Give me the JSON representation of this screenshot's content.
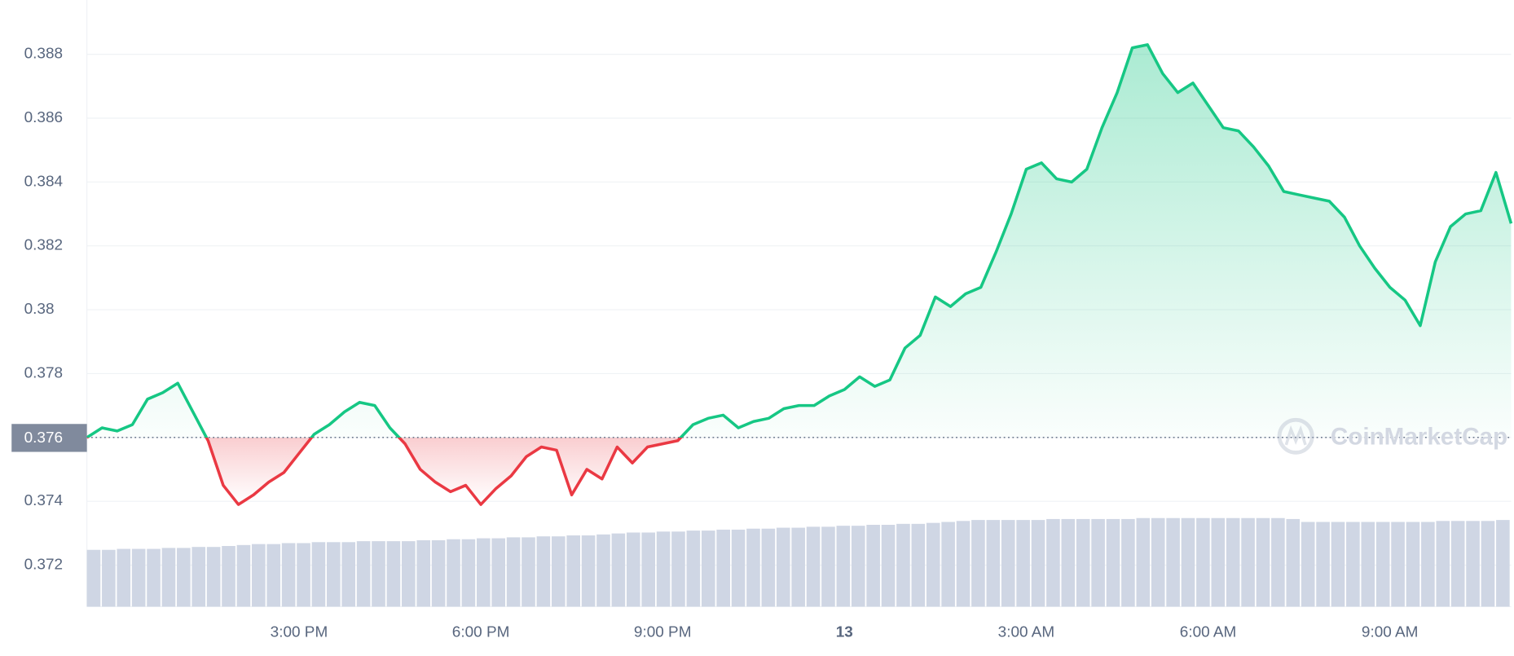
{
  "chart_data": {
    "type": "line",
    "x": [
      0,
      0.25,
      0.5,
      0.75,
      1,
      1.25,
      1.5,
      1.75,
      2,
      2.25,
      2.5,
      2.75,
      3,
      3.25,
      3.5,
      3.75,
      4,
      4.25,
      4.5,
      4.75,
      5,
      5.25,
      5.5,
      5.75,
      6,
      6.25,
      6.5,
      6.75,
      7,
      7.25,
      7.5,
      7.75,
      8,
      8.25,
      8.5,
      8.75,
      9,
      9.25,
      9.5,
      9.75,
      10,
      10.25,
      10.5,
      10.75,
      11,
      11.25,
      11.5,
      11.75,
      12,
      12.25,
      12.5,
      12.75,
      13,
      13.25,
      13.5,
      13.75,
      14,
      14.25,
      14.5,
      14.75,
      15,
      15.25,
      15.5,
      15.75,
      16,
      16.25,
      16.5,
      16.75,
      17,
      17.25,
      17.5,
      17.75,
      18,
      18.25,
      18.5,
      18.75,
      19,
      19.25,
      19.5,
      19.75,
      20,
      20.25,
      20.5,
      20.75,
      21,
      21.25,
      21.5,
      21.75,
      22,
      22.25,
      22.5,
      22.75,
      23,
      23.25,
      23.5
    ],
    "values": [
      0.376,
      0.3763,
      0.3762,
      0.3764,
      0.3772,
      0.3774,
      0.3777,
      0.3768,
      0.3759,
      0.3745,
      0.3739,
      0.3742,
      0.3746,
      0.3749,
      0.3755,
      0.3761,
      0.3764,
      0.3768,
      0.3771,
      0.377,
      0.3763,
      0.3758,
      0.375,
      0.3746,
      0.3743,
      0.3745,
      0.3739,
      0.3744,
      0.3748,
      0.3754,
      0.3757,
      0.3756,
      0.3742,
      0.375,
      0.3747,
      0.3757,
      0.3752,
      0.3757,
      0.3758,
      0.3759,
      0.3764,
      0.3766,
      0.3767,
      0.3763,
      0.3765,
      0.3766,
      0.3769,
      0.377,
      0.377,
      0.3773,
      0.3775,
      0.3779,
      0.3776,
      0.3778,
      0.3788,
      0.3792,
      0.3804,
      0.3801,
      0.3805,
      0.3807,
      0.3818,
      0.383,
      0.3844,
      0.3846,
      0.3841,
      0.384,
      0.3844,
      0.3857,
      0.3868,
      0.3882,
      0.3883,
      0.3874,
      0.3868,
      0.3871,
      0.3864,
      0.3857,
      0.3856,
      0.3851,
      0.3845,
      0.3837,
      0.3836,
      0.3835,
      0.3834,
      0.3829,
      0.382,
      0.3813,
      0.3807,
      0.3803,
      0.3795,
      0.3815,
      0.3826,
      0.383,
      0.3831,
      0.3843,
      0.3827
    ],
    "volume": [
      59,
      59,
      60,
      60,
      60,
      61,
      61,
      62,
      62,
      63,
      64,
      65,
      65,
      66,
      66,
      67,
      67,
      67,
      68,
      68,
      68,
      68,
      69,
      69,
      70,
      70,
      71,
      71,
      72,
      72,
      73,
      73,
      74,
      74,
      75,
      76,
      77,
      77,
      78,
      78,
      79,
      79,
      80,
      80,
      81,
      81,
      82,
      82,
      83,
      83,
      84,
      84,
      85,
      85,
      86,
      86,
      87,
      88,
      89,
      90,
      90,
      90,
      90,
      90,
      91,
      91,
      91,
      91,
      91,
      91,
      92,
      92,
      92,
      92,
      92,
      92,
      92,
      92,
      92,
      92,
      91,
      88,
      88,
      88,
      88,
      88,
      88,
      88,
      88,
      88,
      89,
      89,
      89,
      89,
      90
    ],
    "baseline": 0.376,
    "up_color": "#16c784",
    "down_color": "#ea3943",
    "volume_color": "#cfd6e4",
    "xlim": [
      0,
      23.5
    ],
    "ylim": [
      0.3707,
      0.3897
    ],
    "yticks": [
      0.372,
      0.374,
      0.376,
      0.378,
      0.38,
      0.382,
      0.384,
      0.386,
      0.388
    ],
    "xticks": [
      {
        "value": 3.5,
        "label": "3:00 PM"
      },
      {
        "value": 6.5,
        "label": "6:00 PM"
      },
      {
        "value": 9.5,
        "label": "9:00 PM"
      },
      {
        "value": 12.5,
        "label": "13"
      },
      {
        "value": 15.5,
        "label": "3:00 AM"
      },
      {
        "value": 18.5,
        "label": "6:00 AM"
      },
      {
        "value": 21.5,
        "label": "9:00 AM"
      }
    ],
    "grid": true,
    "watermark": "CoinMarketCap"
  }
}
